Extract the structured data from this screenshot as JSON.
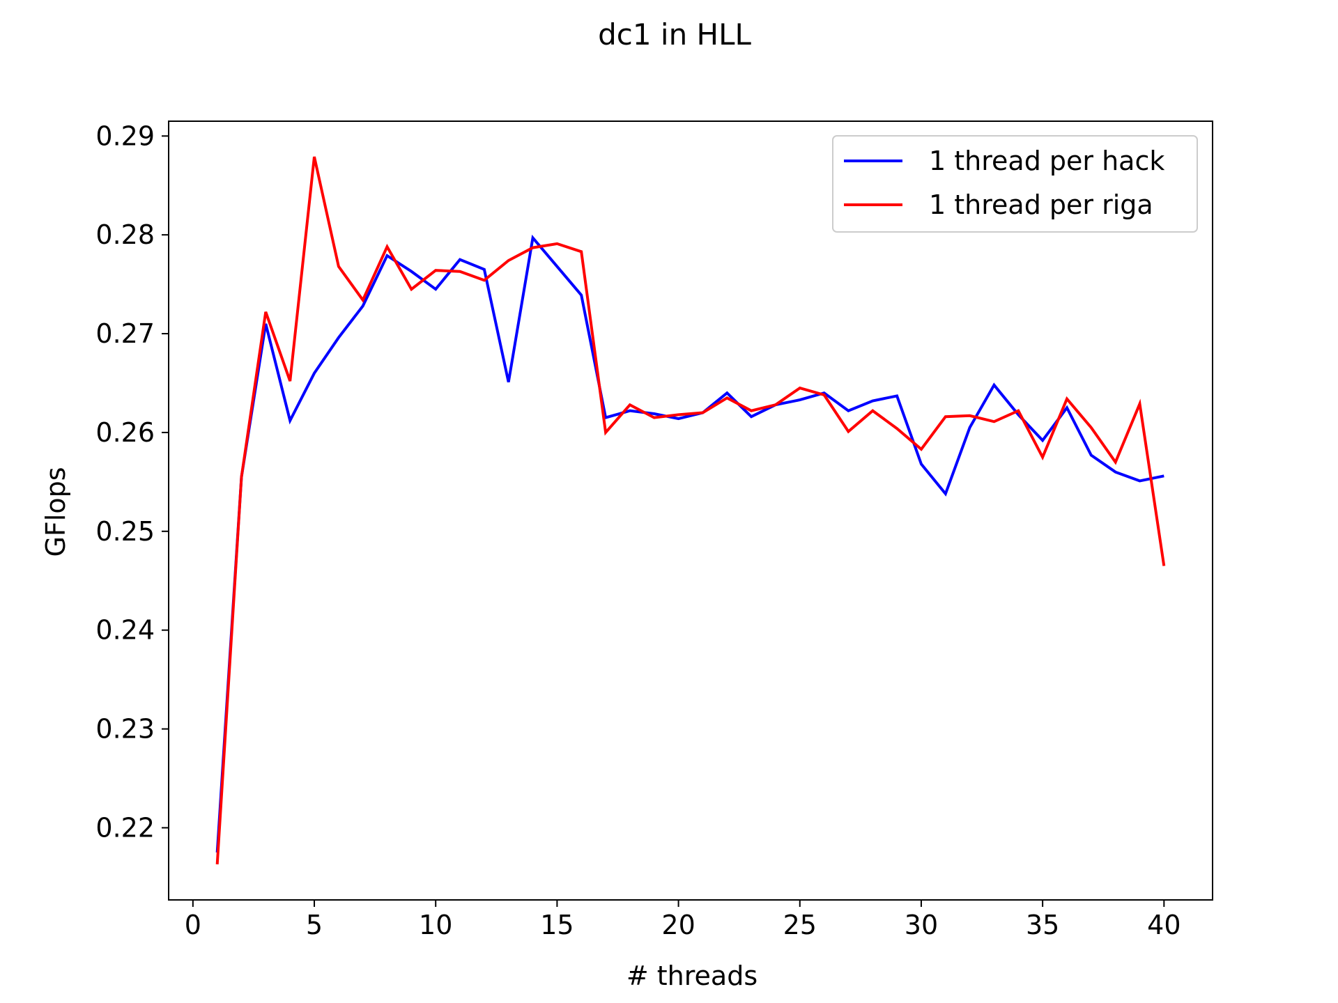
{
  "chart_data": {
    "type": "line",
    "title": "dc1 in HLL",
    "xlabel": "# threads",
    "ylabel": "GFlops",
    "xlim": [
      -1,
      42
    ],
    "ylim": [
      0.2127,
      0.2915
    ],
    "xticks": [
      0,
      5,
      10,
      15,
      20,
      25,
      30,
      35,
      40
    ],
    "xtick_labels": [
      "0",
      "5",
      "10",
      "15",
      "20",
      "25",
      "30",
      "35",
      "40"
    ],
    "yticks": [
      0.22,
      0.23,
      0.24,
      0.25,
      0.26,
      0.27,
      0.28,
      0.29
    ],
    "ytick_labels": [
      "0.22",
      "0.23",
      "0.24",
      "0.25",
      "0.26",
      "0.27",
      "0.28",
      "0.29"
    ],
    "grid": false,
    "legend_position": "top-right",
    "x": [
      1,
      2,
      3,
      4,
      5,
      6,
      7,
      8,
      9,
      10,
      11,
      12,
      13,
      14,
      15,
      16,
      17,
      18,
      19,
      20,
      21,
      22,
      23,
      24,
      25,
      26,
      27,
      28,
      29,
      30,
      31,
      32,
      33,
      34,
      35,
      36,
      37,
      38,
      39,
      40
    ],
    "series": [
      {
        "name": "1 thread per hack",
        "color": "#0000ff",
        "values": [
          0.2175,
          0.2555,
          0.271,
          0.2612,
          0.266,
          0.2696,
          0.2728,
          0.2779,
          0.2763,
          0.2745,
          0.2775,
          0.2765,
          0.2651,
          0.2797,
          0.2768,
          0.2739,
          0.2615,
          0.2622,
          0.2619,
          0.2614,
          0.262,
          0.264,
          0.2616,
          0.2628,
          0.2633,
          0.264,
          0.2622,
          0.2632,
          0.2637,
          0.2568,
          0.2538,
          0.2605,
          0.2648,
          0.2618,
          0.2592,
          0.2625,
          0.2577,
          0.256,
          0.2551,
          0.2556
        ]
      },
      {
        "name": "1 thread per riga",
        "color": "#ff0000",
        "values": [
          0.2163,
          0.2555,
          0.2722,
          0.2652,
          0.2879,
          0.2768,
          0.2734,
          0.2788,
          0.2745,
          0.2764,
          0.2763,
          0.2754,
          0.2774,
          0.2787,
          0.2791,
          0.2783,
          0.26,
          0.2628,
          0.2615,
          0.2618,
          0.262,
          0.2635,
          0.2622,
          0.2628,
          0.2645,
          0.2638,
          0.2601,
          0.2622,
          0.2604,
          0.2583,
          0.2616,
          0.2617,
          0.2611,
          0.2622,
          0.2575,
          0.2634,
          0.2605,
          0.257,
          0.2629,
          0.2465
        ]
      }
    ]
  }
}
